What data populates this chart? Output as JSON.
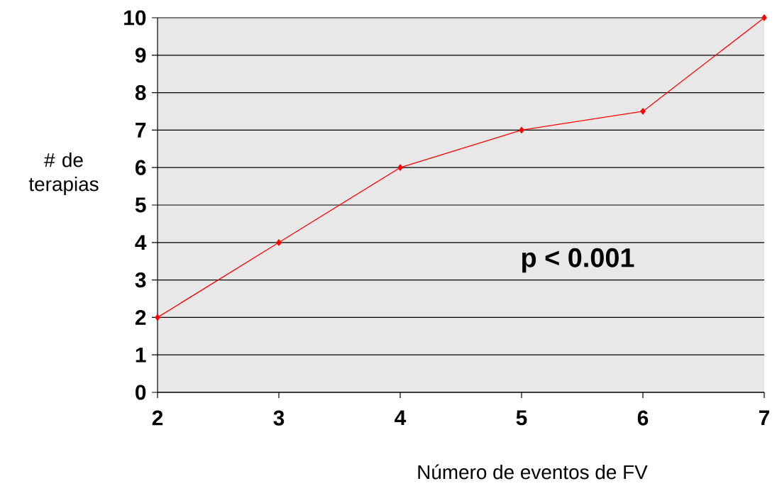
{
  "chart_data": {
    "type": "line",
    "xlabel": "Número de eventos de FV",
    "ylabel": "# de terapias",
    "x": [
      2,
      3,
      4,
      5,
      6,
      7
    ],
    "series": [
      {
        "color": "#ff0000",
        "values": [
          2,
          4,
          6,
          7,
          7.5,
          10
        ]
      }
    ],
    "xlim": [
      2,
      7
    ],
    "ylim": [
      0,
      10
    ],
    "xticks": [
      2,
      3,
      4,
      5,
      6,
      7
    ],
    "yticks": [
      0,
      1,
      2,
      3,
      4,
      5,
      6,
      7,
      8,
      9,
      10
    ],
    "grid": "y",
    "marker": "diamond",
    "line_style": "solid",
    "annotations": [
      "p < 0.001"
    ]
  }
}
